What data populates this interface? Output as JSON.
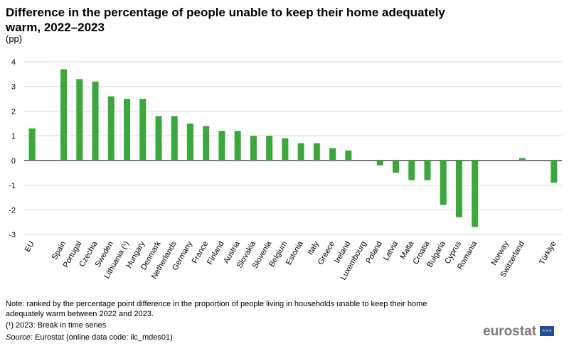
{
  "title": "Difference in the percentage of people unable to keep their home adequately warm, 2022–2023",
  "unit": "(pp)",
  "chart_data": {
    "type": "bar",
    "categories": [
      "EU",
      "",
      "Spain",
      "Portugal",
      "Czechia",
      "Sweden",
      "Lithuania (¹)",
      "Hungary",
      "Denmark",
      "Netherlands",
      "Germany",
      "France",
      "Finland",
      "Austria",
      "Slovakia",
      "Slovenia",
      "Belgium",
      "Estonia",
      "Italy",
      "Greece",
      "Ireland",
      "Luxembourg",
      "Poland",
      "Latvia",
      "Malta",
      "Croatia",
      "Bulgaria",
      "Cyprus",
      "Romania",
      "",
      "Norway",
      "Switzerland",
      "",
      "Türkiye"
    ],
    "values": [
      1.3,
      null,
      3.7,
      3.3,
      3.2,
      2.6,
      2.5,
      2.5,
      1.8,
      1.8,
      1.5,
      1.4,
      1.2,
      1.2,
      1.0,
      1.0,
      0.9,
      0.7,
      0.7,
      0.5,
      0.4,
      0.0,
      -0.2,
      -0.5,
      -0.8,
      -0.8,
      -1.8,
      -2.3,
      -2.7,
      null,
      0.0,
      0.1,
      null,
      -0.9
    ],
    "ylim": [
      -3,
      4
    ],
    "yticks": [
      4,
      3,
      2,
      1,
      0,
      -1,
      -2,
      -3
    ],
    "grid": true,
    "bar_color": "#3aa83a"
  },
  "footnotes": {
    "note": "Note: ranked by the percentage point difference in the proportion of people living in households unable to keep their home adequately warm between 2022 and 2023.",
    "break": "(¹) 2023: Break in time series",
    "source_label": "Source:",
    "source_text": " Eurostat (online data code: ilc_mdes01)"
  },
  "logo": {
    "text": "eurostat",
    "stars": "★★★"
  }
}
